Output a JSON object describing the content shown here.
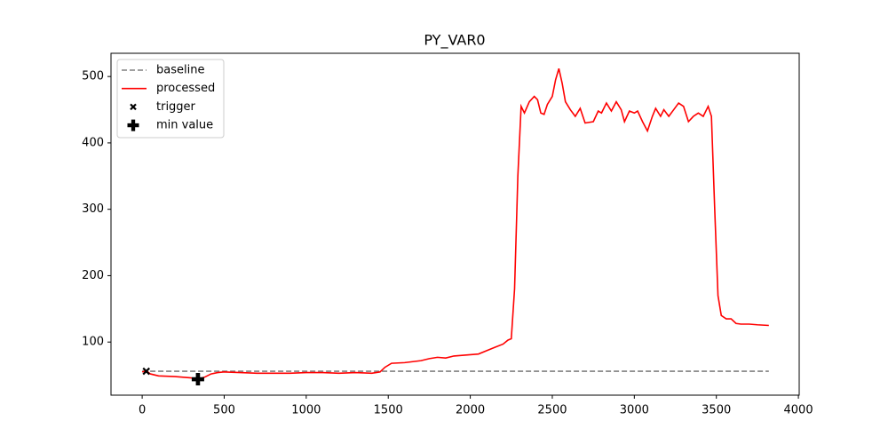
{
  "chart_data": {
    "type": "line",
    "title": "PY_VAR0",
    "xlim": [
      -190,
      4005
    ],
    "ylim": [
      20,
      535
    ],
    "xticks": [
      0,
      500,
      1000,
      1500,
      2000,
      2500,
      3000,
      3500,
      4000
    ],
    "yticks": [
      100,
      200,
      300,
      400,
      500
    ],
    "legend": "upper left",
    "series": [
      {
        "name": "baseline",
        "color": "#808080",
        "linestyle": "dashed",
        "marker": "none",
        "x": [
          0,
          3820
        ],
        "values": [
          56,
          56
        ]
      },
      {
        "name": "processed",
        "color": "#ff0000",
        "linestyle": "solid",
        "marker": "none",
        "x": [
          0,
          25,
          50,
          100,
          200,
          300,
          340,
          380,
          420,
          460,
          500,
          600,
          700,
          800,
          900,
          1000,
          1100,
          1200,
          1300,
          1400,
          1450,
          1480,
          1520,
          1600,
          1700,
          1750,
          1800,
          1850,
          1900,
          1950,
          2000,
          2050,
          2100,
          2150,
          2200,
          2230,
          2250,
          2270,
          2290,
          2310,
          2330,
          2360,
          2390,
          2410,
          2430,
          2450,
          2470,
          2500,
          2520,
          2540,
          2560,
          2580,
          2610,
          2640,
          2670,
          2700,
          2750,
          2780,
          2800,
          2830,
          2860,
          2890,
          2920,
          2940,
          2970,
          3000,
          3020,
          3050,
          3080,
          3110,
          3130,
          3160,
          3180,
          3210,
          3240,
          3270,
          3300,
          3330,
          3360,
          3390,
          3420,
          3450,
          3470,
          3490,
          3510,
          3530,
          3560,
          3590,
          3620,
          3650,
          3700,
          3750,
          3820
        ],
        "values": [
          55,
          57,
          52,
          49,
          48,
          46,
          44,
          47,
          52,
          54,
          55,
          54,
          53,
          53,
          53,
          54,
          54,
          53,
          54,
          53,
          55,
          62,
          68,
          69,
          72,
          75,
          77,
          76,
          79,
          80,
          81,
          82,
          87,
          92,
          97,
          103,
          105,
          180,
          350,
          455,
          445,
          462,
          470,
          465,
          445,
          443,
          458,
          470,
          495,
          512,
          490,
          462,
          450,
          440,
          452,
          430,
          432,
          448,
          445,
          460,
          448,
          462,
          450,
          432,
          448,
          445,
          448,
          432,
          418,
          440,
          452,
          440,
          450,
          440,
          450,
          460,
          455,
          432,
          440,
          445,
          440,
          455,
          440,
          300,
          170,
          140,
          135,
          135,
          128,
          127,
          127,
          126,
          125
        ]
      },
      {
        "name": "trigger",
        "color": "#000000",
        "linestyle": "none",
        "marker": "x",
        "x": [
          25
        ],
        "values": [
          56
        ]
      },
      {
        "name": "min value",
        "color": "#000000",
        "linestyle": "none",
        "marker": "P",
        "x": [
          340
        ],
        "values": [
          44
        ]
      }
    ]
  }
}
